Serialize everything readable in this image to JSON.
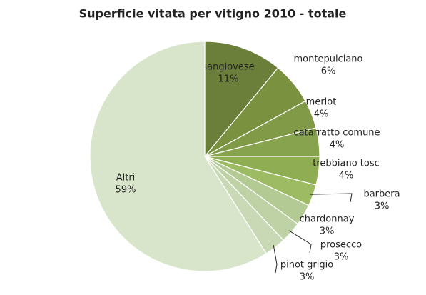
{
  "chart_data": {
    "type": "pie",
    "title": "Superficie vitata per vitigno 2010 - totale",
    "categories": [
      "sangiovese",
      "montepulciano",
      "merlot",
      "catarratto comune",
      "trebbiano tosc",
      "barbera",
      "chardonnay",
      "prosecco",
      "pinot grigio",
      "Altri"
    ],
    "values": [
      11,
      6,
      4,
      4,
      4,
      3,
      3,
      3,
      3,
      59
    ],
    "value_labels": [
      "11%",
      "6%",
      "4%",
      "4%",
      "4%",
      "3%",
      "3%",
      "3%",
      "3%",
      "59%"
    ],
    "colors": [
      "#6b7f3a",
      "#7a9140",
      "#809a47",
      "#87a34d",
      "#8fad52",
      "#9dbb63",
      "#b4ca94",
      "#bfd2a6",
      "#c9d9b6",
      "#d9e5cb"
    ]
  }
}
